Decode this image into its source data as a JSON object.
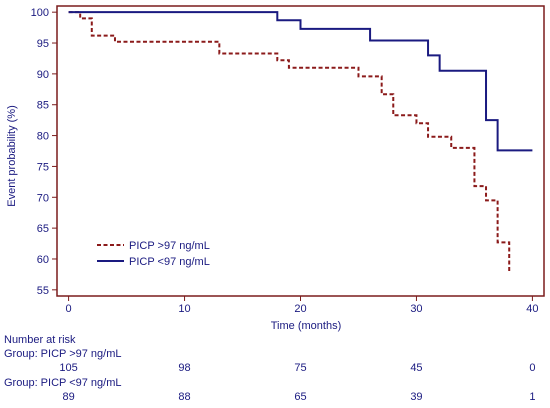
{
  "chart_data": {
    "type": "line",
    "title": "",
    "xlabel": "Time (months)",
    "ylabel": "Event probability (%)",
    "xlim": [
      -1,
      41
    ],
    "ylim": [
      54,
      101
    ],
    "x_ticks": [
      0,
      10,
      20,
      30,
      40
    ],
    "y_ticks": [
      55,
      60,
      65,
      70,
      75,
      80,
      85,
      90,
      95,
      100
    ],
    "grid": false,
    "legend_position": "bottom-left",
    "series": [
      {
        "name": "PICP >97 ng/mL",
        "color": "#8b1a1a",
        "style": "dashed",
        "steps": [
          [
            0,
            100
          ],
          [
            1,
            99
          ],
          [
            2,
            96.2
          ],
          [
            4,
            95.2
          ],
          [
            13,
            93.3
          ],
          [
            18,
            92.2
          ],
          [
            19,
            91
          ],
          [
            25,
            89.6
          ],
          [
            27,
            86.7
          ],
          [
            28,
            83.3
          ],
          [
            30,
            82
          ],
          [
            31,
            79.8
          ],
          [
            33,
            78
          ],
          [
            35,
            71.8
          ],
          [
            36,
            69.5
          ],
          [
            37,
            62.7
          ],
          [
            38,
            58
          ]
        ]
      },
      {
        "name": "PICP <97 ng/mL",
        "color": "#1a1a80",
        "style": "solid",
        "steps": [
          [
            0,
            100
          ],
          [
            18,
            98.7
          ],
          [
            20,
            97.3
          ],
          [
            26,
            95.4
          ],
          [
            31,
            93
          ],
          [
            32,
            90.5
          ],
          [
            36,
            82.5
          ],
          [
            37,
            77.6
          ],
          [
            40,
            77.6
          ]
        ]
      }
    ],
    "number_at_risk": {
      "heading": "Number at risk",
      "groups": [
        {
          "label": "Group: PICP >97 ng/mL",
          "times": [
            0,
            10,
            20,
            30,
            40
          ],
          "values": [
            "105",
            "98",
            "75",
            "45",
            "0"
          ]
        },
        {
          "label": "Group: PICP <97 ng/mL",
          "times": [
            0,
            10,
            20,
            30,
            40
          ],
          "values": [
            "89",
            "88",
            "65",
            "39",
            "1"
          ]
        }
      ]
    }
  }
}
